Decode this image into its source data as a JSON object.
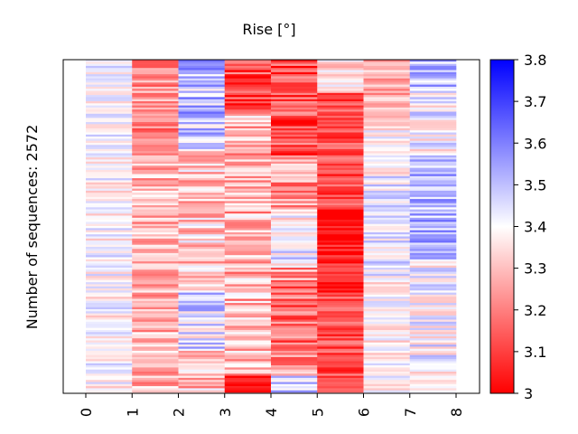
{
  "chart_data": {
    "type": "heatmap",
    "title": "Rise [°]",
    "ylabel": "Number of sequences: 2572",
    "xlabel": "",
    "columns": [
      "0",
      "1",
      "2",
      "3",
      "4",
      "5",
      "6",
      "7",
      "8"
    ],
    "colorbar": {
      "min": 3.0,
      "max": 3.8,
      "ticks": [
        "3",
        "3.1",
        "3.2",
        "3.3",
        "3.4",
        "3.5",
        "3.6",
        "3.7",
        "3.8"
      ],
      "colormap": "bwr_r",
      "low_color": "#ff0000",
      "mid_color": "#ffffff",
      "high_color": "#0000ff"
    },
    "column_profiles": [
      {
        "column": "0",
        "mean": 3.4,
        "spread": 0.1
      },
      {
        "column": "1",
        "mean": 3.28,
        "spread": 0.12,
        "segments": [
          {
            "from": 0.0,
            "to": 0.3,
            "mean": 3.22
          }
        ]
      },
      {
        "column": "2",
        "mean": 3.33,
        "spread": 0.14,
        "segments": [
          {
            "from": 0.0,
            "to": 0.27,
            "mean": 3.5
          },
          {
            "from": 0.27,
            "to": 0.7,
            "mean": 3.32
          },
          {
            "from": 0.7,
            "to": 0.87,
            "mean": 3.45
          },
          {
            "from": 0.87,
            "to": 1.0,
            "mean": 3.3
          }
        ]
      },
      {
        "column": "3",
        "mean": 3.28,
        "spread": 0.14,
        "segments": [
          {
            "from": 0.0,
            "to": 0.15,
            "mean": 3.12
          },
          {
            "from": 0.95,
            "to": 1.0,
            "mean": 3.05
          }
        ]
      },
      {
        "column": "4",
        "mean": 3.25,
        "spread": 0.14,
        "segments": [
          {
            "from": 0.0,
            "to": 0.3,
            "mean": 3.12
          },
          {
            "from": 0.45,
            "to": 0.62,
            "mean": 3.42
          },
          {
            "from": 0.67,
            "to": 0.85,
            "mean": 3.18
          },
          {
            "from": 0.95,
            "to": 1.0,
            "mean": 3.5
          }
        ]
      },
      {
        "column": "5",
        "mean": 3.12,
        "spread": 0.1,
        "segments": [
          {
            "from": 0.0,
            "to": 0.1,
            "mean": 3.35
          },
          {
            "from": 0.45,
            "to": 0.7,
            "mean": 3.04
          }
        ]
      },
      {
        "column": "6",
        "mean": 3.38,
        "spread": 0.1,
        "segments": [
          {
            "from": 0.0,
            "to": 0.2,
            "mean": 3.28
          },
          {
            "from": 0.35,
            "to": 0.65,
            "mean": 3.44
          }
        ]
      },
      {
        "column": "7",
        "mean": 3.42,
        "spread": 0.12,
        "segments": [
          {
            "from": 0.0,
            "to": 0.1,
            "mean": 3.5
          },
          {
            "from": 0.3,
            "to": 0.6,
            "mean": 3.52
          }
        ]
      }
    ]
  }
}
